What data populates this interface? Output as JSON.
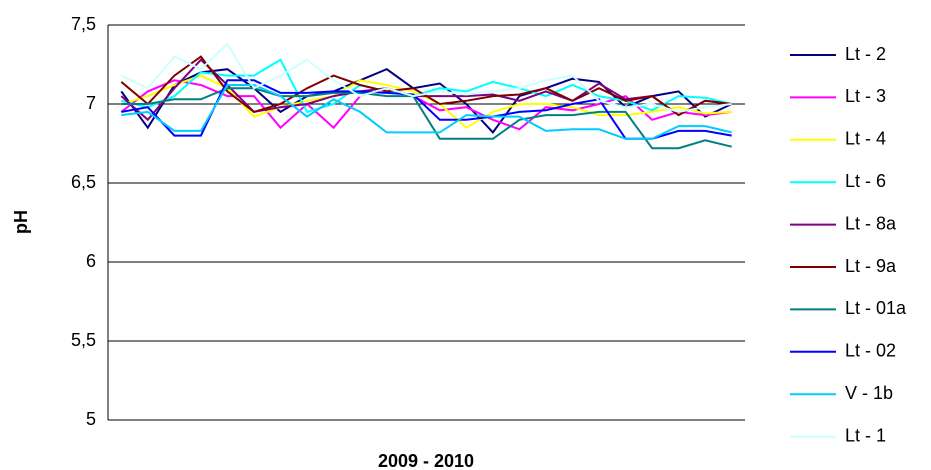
{
  "chart_data": {
    "type": "line",
    "x_label": "2009 - 2010",
    "y_label": "pH",
    "categories": [
      null,
      null,
      null,
      null,
      null,
      null,
      null,
      null,
      null,
      null,
      null,
      null,
      null,
      null,
      null,
      null,
      null,
      null,
      null,
      null,
      null,
      null,
      null,
      null
    ],
    "ylim": [
      5,
      7.5
    ],
    "yticks": [
      {
        "value": 7.5,
        "label": "7,5"
      },
      7,
      {
        "value": 6.5,
        "label": "6,5"
      },
      6,
      {
        "value": 5.5,
        "label": "5,5"
      },
      5
    ],
    "grid": true,
    "legend": "right",
    "series": [
      {
        "name": "Lt - 2",
        "color": "#000080",
        "values": [
          7.08,
          6.85,
          7.12,
          7.2,
          7.22,
          7.1,
          6.95,
          7.05,
          7.08,
          7.15,
          7.22,
          7.1,
          7.13,
          7.0,
          6.82,
          7.05,
          7.1,
          7.16,
          7.14,
          6.98,
          7.05,
          7.08,
          6.92,
          7.0
        ]
      },
      {
        "name": "Lt - 3",
        "color": "#ff00ff",
        "values": [
          6.95,
          7.08,
          7.15,
          7.12,
          7.05,
          7.05,
          6.85,
          7.0,
          6.85,
          7.05,
          7.1,
          7.05,
          6.96,
          6.98,
          6.9,
          6.84,
          6.98,
          6.96,
          7.0,
          7.05,
          6.9,
          6.95,
          6.93,
          6.95
        ]
      },
      {
        "name": "Lt - 4",
        "color": "#ffff00",
        "values": [
          7.0,
          7.05,
          7.12,
          7.18,
          7.1,
          6.92,
          6.98,
          7.02,
          7.05,
          7.15,
          7.12,
          7.08,
          7.0,
          6.85,
          6.95,
          7.0,
          7.0,
          6.98,
          6.93,
          6.93,
          6.95,
          6.98,
          6.94,
          6.95
        ]
      },
      {
        "name": "Lt - 6",
        "color": "#00ffff",
        "values": [
          7.02,
          6.98,
          7.05,
          7.2,
          7.18,
          7.18,
          7.28,
          6.95,
          7.0,
          7.12,
          7.08,
          7.05,
          7.1,
          7.08,
          7.14,
          7.1,
          7.05,
          7.12,
          7.05,
          7.02,
          6.96,
          7.05,
          7.04,
          7.0
        ]
      },
      {
        "name": "Lt - 8a",
        "color": "#800080",
        "values": [
          7.05,
          6.9,
          7.1,
          7.28,
          7.12,
          6.95,
          6.98,
          7.0,
          7.05,
          7.08,
          7.1,
          7.05,
          7.05,
          7.05,
          7.06,
          7.02,
          7.08,
          7.02,
          7.13,
          7.03,
          7.05,
          6.93,
          7.02,
          7.0
        ]
      },
      {
        "name": "Lt - 9a",
        "color": "#800000",
        "values": [
          7.14,
          7.0,
          7.18,
          7.3,
          7.08,
          6.95,
          7.0,
          7.1,
          7.18,
          7.12,
          7.08,
          7.1,
          7.0,
          7.02,
          7.05,
          7.06,
          7.1,
          7.02,
          7.1,
          7.02,
          7.05,
          6.93,
          7.02,
          7.0
        ]
      },
      {
        "name": "Lt - 01a",
        "color": "#008080",
        "values": [
          7.0,
          7.0,
          7.03,
          7.03,
          7.1,
          7.1,
          7.05,
          7.05,
          7.07,
          7.07,
          7.05,
          7.05,
          6.78,
          6.78,
          6.78,
          6.9,
          6.93,
          6.93,
          6.95,
          6.95,
          6.72,
          6.72,
          6.77,
          6.73
        ]
      },
      {
        "name": "Lt - 02",
        "color": "#0000ff",
        "values": [
          6.95,
          6.98,
          6.8,
          6.8,
          7.15,
          7.15,
          7.07,
          7.07,
          7.08,
          7.08,
          7.07,
          7.06,
          6.9,
          6.9,
          6.92,
          6.95,
          6.96,
          7.0,
          7.03,
          6.78,
          6.78,
          6.83,
          6.83,
          6.8
        ]
      },
      {
        "name": "V - 1b",
        "color": "#00ccff",
        "values": [
          6.93,
          6.95,
          6.83,
          6.83,
          7.12,
          7.12,
          7.05,
          6.92,
          7.03,
          6.95,
          6.82,
          6.82,
          6.82,
          6.93,
          6.92,
          6.92,
          6.83,
          6.84,
          6.84,
          6.78,
          6.78,
          6.86,
          6.86,
          6.82
        ]
      },
      {
        "name": "Lt - 1",
        "color": "#ccffff",
        "values": [
          7.18,
          7.1,
          7.3,
          7.22,
          7.38,
          7.1,
          7.18,
          7.28,
          7.15,
          7.05,
          7.1,
          7.05,
          7.08,
          7.06,
          7.08,
          7.1,
          7.15,
          7.18,
          7.02,
          6.98,
          7.0,
          6.95,
          6.98,
          7.0
        ]
      }
    ]
  }
}
